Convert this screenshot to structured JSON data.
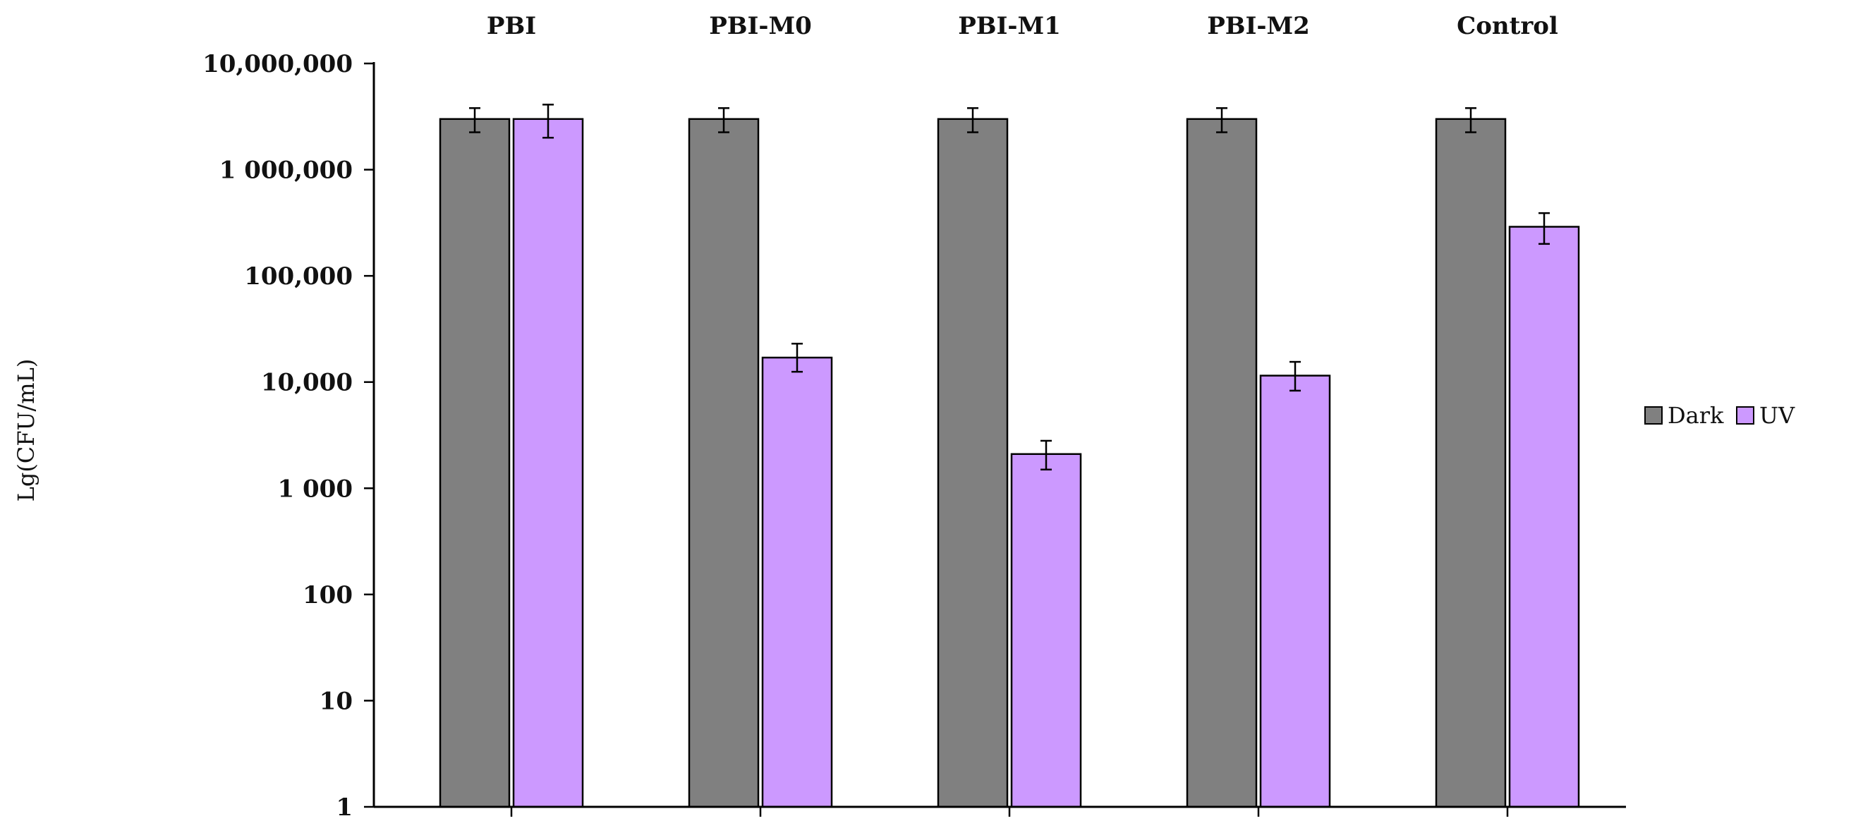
{
  "chart_data": {
    "type": "bar",
    "title": "",
    "xlabel": "",
    "ylabel": "Lg(CFU/mL)",
    "yscale": "log",
    "ylim": [
      1,
      10000000
    ],
    "yticks": [
      1,
      10,
      100,
      1000,
      10000,
      100000,
      1000000,
      10000000
    ],
    "ytick_labels": [
      "1",
      "10",
      "100",
      "1 000",
      "10,000",
      "100,000",
      "1 000,000",
      "10,000,000"
    ],
    "categories": [
      "PBI",
      "PBI-M0",
      "PBI-M1",
      "PBI-M2",
      "Control"
    ],
    "category_label_position": "top",
    "legend_position": "right",
    "grid": false,
    "series": [
      {
        "name": "Dark",
        "color": "#808080",
        "values": [
          3000000,
          3000000,
          3000000,
          3000000,
          3000000
        ],
        "err_low": [
          2250000,
          2250000,
          2250000,
          2250000,
          2250000
        ],
        "err_high": [
          3800000,
          3800000,
          3800000,
          3800000,
          3800000
        ]
      },
      {
        "name": "UV",
        "color": "#CC99FF",
        "values": [
          3000000,
          17000,
          2100,
          11500,
          290000
        ],
        "err_low": [
          2000000,
          12500,
          1500,
          8300,
          200000
        ],
        "err_high": [
          4100000,
          23000,
          2800,
          15500,
          390000
        ]
      }
    ]
  }
}
